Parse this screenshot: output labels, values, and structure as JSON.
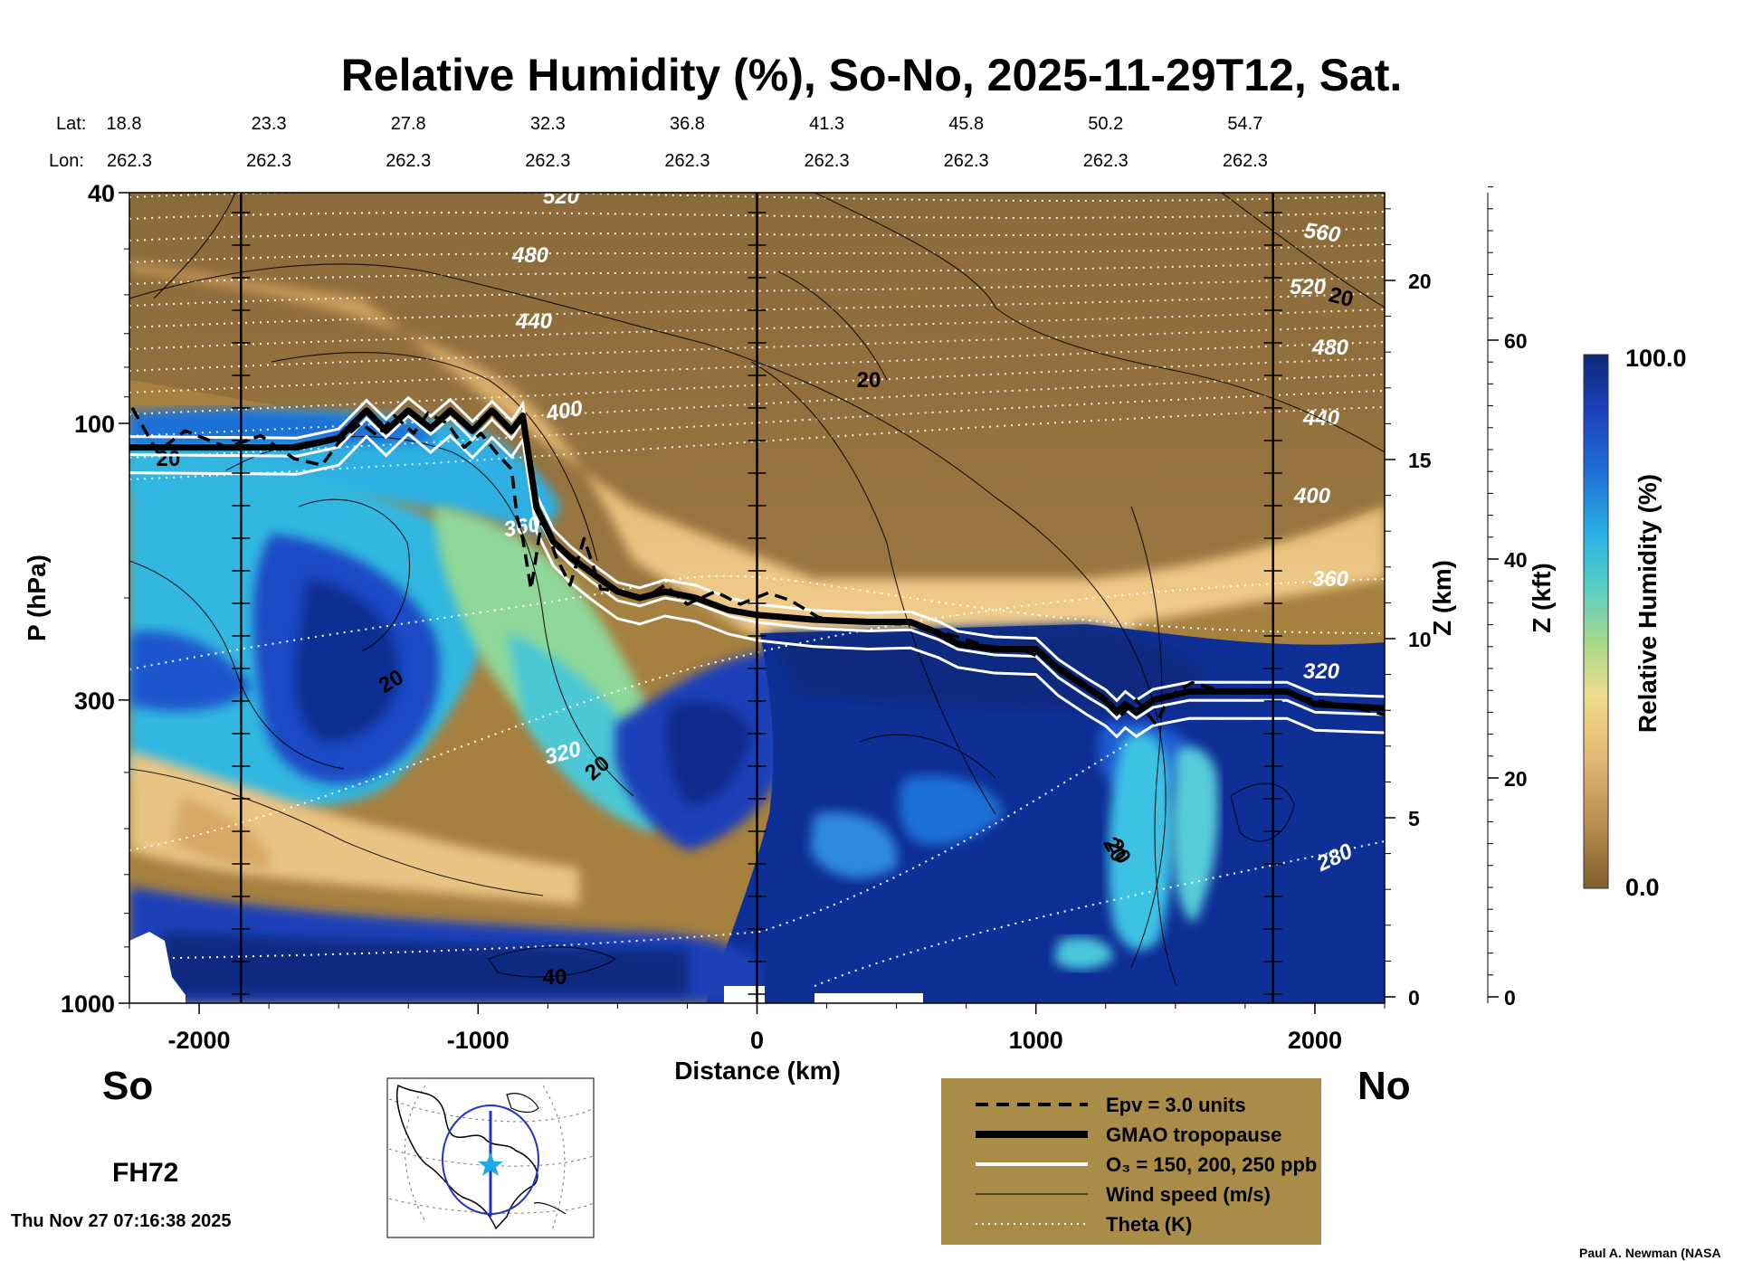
{
  "chart_data": {
    "type": "heatmap",
    "title": "Relative Humidity (%), So-No, 2025-11-29T12, Sat.",
    "xlabel": "Distance (km)",
    "ylabel": "P (hPa)",
    "z_km_label": "Z (km)",
    "z_kft_label": "Z (kft)",
    "colorbar_label": "Relative Humidity (%)",
    "colorbar_max": "100.0",
    "colorbar_min": "0.0",
    "xlim": [
      -2250,
      2250
    ],
    "ylim_hpa": [
      1000,
      40
    ],
    "x_ticks": [
      {
        "value": -2000,
        "label": "-2000"
      },
      {
        "value": -1000,
        "label": "-1000"
      },
      {
        "value": 0,
        "label": "0"
      },
      {
        "value": 1000,
        "label": "1000"
      },
      {
        "value": 2000,
        "label": "2000"
      }
    ],
    "p_ticks": [
      {
        "value": 40,
        "label": "40"
      },
      {
        "value": 100,
        "label": "100"
      },
      {
        "value": 300,
        "label": "300"
      },
      {
        "value": 1000,
        "label": "1000"
      }
    ],
    "z_km_ticks": [
      {
        "value": 0,
        "label": "0"
      },
      {
        "value": 5,
        "label": "5"
      },
      {
        "value": 10,
        "label": "10"
      },
      {
        "value": 15,
        "label": "15"
      },
      {
        "value": 20,
        "label": "20"
      }
    ],
    "z_kft_ticks": [
      {
        "value": 0,
        "label": "0"
      },
      {
        "value": 20,
        "label": "20"
      },
      {
        "value": 40,
        "label": "40"
      },
      {
        "value": 60,
        "label": "60"
      }
    ],
    "lat_label": "Lat:",
    "lon_label": "Lon:",
    "lat_lon": [
      {
        "x": -2250,
        "lat": "18.8",
        "lon": "262.3"
      },
      {
        "x": -1750,
        "lat": "23.3",
        "lon": "262.3"
      },
      {
        "x": -1250,
        "lat": "27.8",
        "lon": "262.3"
      },
      {
        "x": -750,
        "lat": "32.3",
        "lon": "262.3"
      },
      {
        "x": -250,
        "lat": "36.8",
        "lon": "262.3"
      },
      {
        "x": 250,
        "lat": "41.3",
        "lon": "262.3"
      },
      {
        "x": 750,
        "lat": "45.8",
        "lon": "262.3"
      },
      {
        "x": 1250,
        "lat": "50.2",
        "lon": "262.3"
      },
      {
        "x": 1750,
        "lat": "54.7",
        "lon": "262.3"
      }
    ],
    "vertical_markers_km": [
      -1850,
      0,
      1850
    ],
    "series": [
      {
        "name": "GMAO tropopause",
        "points": [
          [
            -2250,
            110
          ],
          [
            -1650,
            110
          ],
          [
            -1500,
            106
          ],
          [
            -1400,
            95
          ],
          [
            -1330,
            103
          ],
          [
            -1250,
            95
          ],
          [
            -1170,
            102
          ],
          [
            -1100,
            95
          ],
          [
            -1020,
            103
          ],
          [
            -950,
            95
          ],
          [
            -880,
            103
          ],
          [
            -840,
            97
          ],
          [
            -790,
            140
          ],
          [
            -730,
            160
          ],
          [
            -670,
            170
          ],
          [
            -600,
            180
          ],
          [
            -500,
            195
          ],
          [
            -420,
            200
          ],
          [
            -330,
            195
          ],
          [
            -220,
            200
          ],
          [
            -100,
            210
          ],
          [
            0,
            214
          ],
          [
            200,
            218
          ],
          [
            400,
            220
          ],
          [
            550,
            220
          ],
          [
            650,
            230
          ],
          [
            720,
            240
          ],
          [
            850,
            245
          ],
          [
            1000,
            245
          ],
          [
            1080,
            265
          ],
          [
            1180,
            285
          ],
          [
            1250,
            300
          ],
          [
            1290,
            315
          ],
          [
            1320,
            305
          ],
          [
            1360,
            315
          ],
          [
            1420,
            300
          ],
          [
            1550,
            290
          ],
          [
            1900,
            290
          ],
          [
            2000,
            305
          ],
          [
            2250,
            310
          ]
        ]
      },
      {
        "name": "Epv = 3.0 units",
        "points": [
          [
            -2240,
            94
          ],
          [
            -2150,
            112
          ],
          [
            -2050,
            103
          ],
          [
            -1900,
            110
          ],
          [
            -1780,
            105
          ],
          [
            -1660,
            115
          ],
          [
            -1560,
            118
          ],
          [
            -1500,
            108
          ],
          [
            -1420,
            100
          ],
          [
            -1360,
            105
          ],
          [
            -1300,
            97
          ],
          [
            -1230,
            104
          ],
          [
            -1180,
            96
          ],
          [
            -1110,
            100
          ],
          [
            -1050,
            110
          ],
          [
            -990,
            104
          ],
          [
            -930,
            113
          ],
          [
            -880,
            120
          ],
          [
            -860,
            145
          ],
          [
            -840,
            158
          ],
          [
            -810,
            193
          ],
          [
            -770,
            145
          ],
          [
            -720,
            170
          ],
          [
            -670,
            190
          ],
          [
            -620,
            158
          ],
          [
            -560,
            193
          ],
          [
            -480,
            195
          ],
          [
            -400,
            200
          ],
          [
            -330,
            190
          ],
          [
            -250,
            205
          ],
          [
            -150,
            195
          ],
          [
            -60,
            205
          ],
          [
            40,
            196
          ],
          [
            120,
            202
          ],
          [
            220,
            216
          ],
          [
            360,
            221
          ],
          [
            560,
            222
          ],
          [
            700,
            232
          ],
          [
            820,
            242
          ],
          [
            950,
            245
          ],
          [
            1080,
            262
          ],
          [
            1180,
            282
          ],
          [
            1260,
            300
          ],
          [
            1300,
            320
          ],
          [
            1360,
            300
          ],
          [
            1430,
            330
          ],
          [
            1480,
            295
          ],
          [
            1560,
            280
          ],
          [
            1700,
            292
          ],
          [
            1880,
            290
          ],
          [
            2000,
            300
          ],
          [
            2150,
            310
          ],
          [
            2250,
            318
          ]
        ]
      }
    ],
    "ozone_contours_ppb": [
      "150",
      "200",
      "250"
    ],
    "theta_contours_K": [
      "280",
      "320",
      "360",
      "400",
      "440",
      "480",
      "520",
      "560"
    ],
    "wind_speed_labels": [
      "20",
      "20",
      "20",
      "40",
      "20",
      "20",
      "20",
      "20"
    ],
    "legend": {
      "position": "bottom-right",
      "items": [
        {
          "style": "dashed",
          "label": "Epv = 3.0 units"
        },
        {
          "style": "thick",
          "label": "GMAO tropopause"
        },
        {
          "style": "white",
          "label": "O₃ = 150, 200, 250 ppb"
        },
        {
          "style": "thin",
          "label": "Wind speed (m/s)"
        },
        {
          "style": "dotted",
          "label": "Theta (K)"
        }
      ]
    }
  },
  "south_label": "So",
  "north_label": "No",
  "forecast_hour": "FH72",
  "timestamp": "Thu Nov 27 07:16:38 2025",
  "credit": "Paul A. Newman (NASA",
  "colors": {
    "dry": "#8b6a3a",
    "tan": "#e2b773",
    "green": "#a7d98a",
    "cyan": "#43c6db",
    "blue": "#1f6fd6",
    "navy": "#0c2d8a",
    "legend_bg": "#a88c48"
  }
}
